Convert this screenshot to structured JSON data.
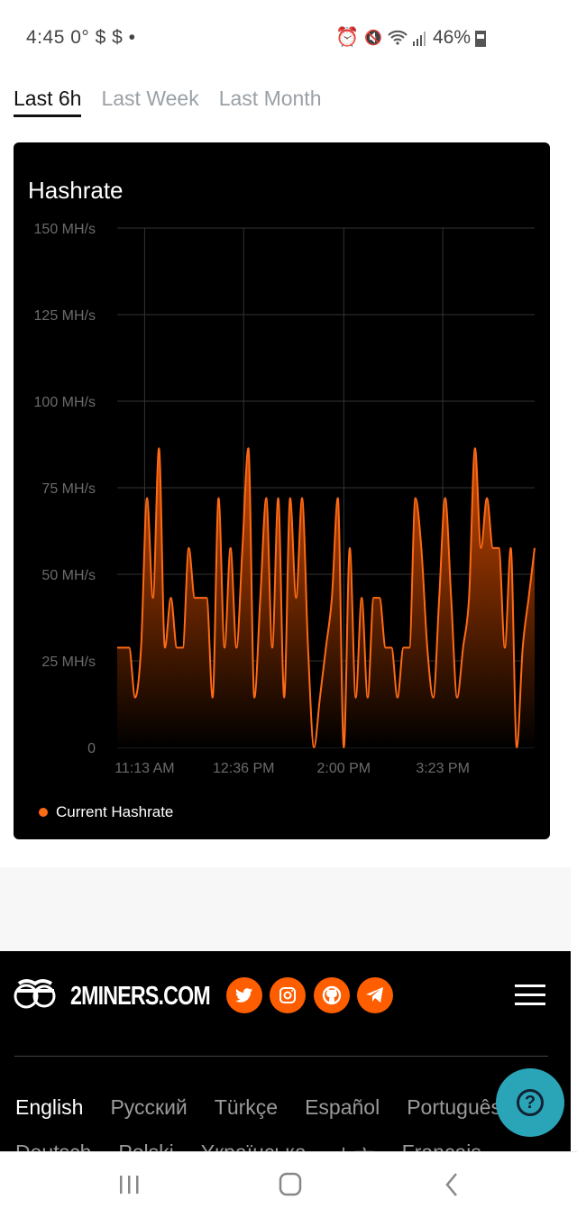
{
  "status_bar": {
    "time": "4:45",
    "extra": "0° $ $ •",
    "battery": "46%",
    "icons": [
      "alarm-icon",
      "mute-icon",
      "wifi-icon",
      "signal-icon",
      "battery-icon"
    ]
  },
  "tabs": [
    {
      "label": "Last 6h",
      "active": true
    },
    {
      "label": "Last Week",
      "active": false
    },
    {
      "label": "Last Month",
      "active": false
    }
  ],
  "card": {
    "title": "Hashrate",
    "legend": "Current Hashrate"
  },
  "chart_data": {
    "type": "area",
    "title": "Hashrate",
    "ylim": [
      0,
      150
    ],
    "y_ticks": [
      "0",
      "25 MH/s",
      "50 MH/s",
      "75 MH/s",
      "100 MH/s",
      "125 MH/s",
      "150 MH/s"
    ],
    "x_ticks": [
      {
        "label": "11:13 AM",
        "t": "11:13"
      },
      {
        "label": "12:36 PM",
        "t": "12:36"
      },
      {
        "label": "2:00 PM",
        "t": "14:00"
      },
      {
        "label": "3:23 PM",
        "t": "15:23"
      }
    ],
    "xlim": [
      "10:50",
      "16:40"
    ],
    "grid": true,
    "legend_position": "bottom-left",
    "series": [
      {
        "name": "Current Hashrate",
        "color": "#ff6a14",
        "x": [
          "10:50",
          "11:00",
          "11:05",
          "11:10",
          "11:15",
          "11:20",
          "11:25",
          "11:30",
          "11:35",
          "11:40",
          "11:45",
          "11:50",
          "11:55",
          "12:05",
          "12:10",
          "12:15",
          "12:20",
          "12:25",
          "12:30",
          "12:35",
          "12:40",
          "12:45",
          "12:50",
          "12:55",
          "13:00",
          "13:05",
          "13:10",
          "13:15",
          "13:20",
          "13:25",
          "13:30",
          "13:35",
          "13:40",
          "13:45",
          "13:50",
          "13:55",
          "14:00",
          "14:05",
          "14:10",
          "14:15",
          "14:20",
          "14:25",
          "14:30",
          "14:35",
          "14:40",
          "14:45",
          "14:50",
          "14:55",
          "15:00",
          "15:05",
          "15:10",
          "15:15",
          "15:20",
          "15:25",
          "15:30",
          "15:35",
          "15:40",
          "15:45",
          "15:50",
          "15:55",
          "16:00",
          "16:05",
          "16:10",
          "16:15",
          "16:20",
          "16:25",
          "16:30",
          "16:35",
          "16:40"
        ],
        "y": [
          28.8,
          28.8,
          14.4,
          28.8,
          72,
          43.2,
          86.4,
          28.8,
          43.2,
          28.8,
          28.8,
          57.6,
          43.2,
          43.2,
          14.4,
          72,
          28.8,
          57.6,
          28.8,
          57.6,
          86.4,
          14.4,
          43.2,
          72,
          28.8,
          72,
          14.4,
          72,
          43.2,
          72,
          28.8,
          0,
          14.4,
          28.8,
          43.2,
          72,
          0,
          57.6,
          14.4,
          43.2,
          14.4,
          43.2,
          43.2,
          28.8,
          28.8,
          14.4,
          28.8,
          28.8,
          72,
          57.6,
          28.8,
          14.4,
          43.2,
          72,
          43.2,
          14.4,
          28.8,
          43.2,
          86.4,
          57.6,
          72,
          57.6,
          57.6,
          28.8,
          57.6,
          0,
          28.8,
          43.2,
          57.6
        ]
      }
    ]
  },
  "footer": {
    "brand": "2MINERS.COM",
    "social": [
      "twitter-icon",
      "instagram-icon",
      "github-icon",
      "telegram-icon"
    ],
    "languages": [
      "English",
      "Русский",
      "Türkçe",
      "Español",
      "Português"
    ],
    "languages_row2": [
      "Deutsch",
      "Polski",
      "Yкраїнська",
      "中文",
      "Français"
    ]
  },
  "colors": {
    "accent": "#fe5e00",
    "help": "#2aa5b8"
  }
}
